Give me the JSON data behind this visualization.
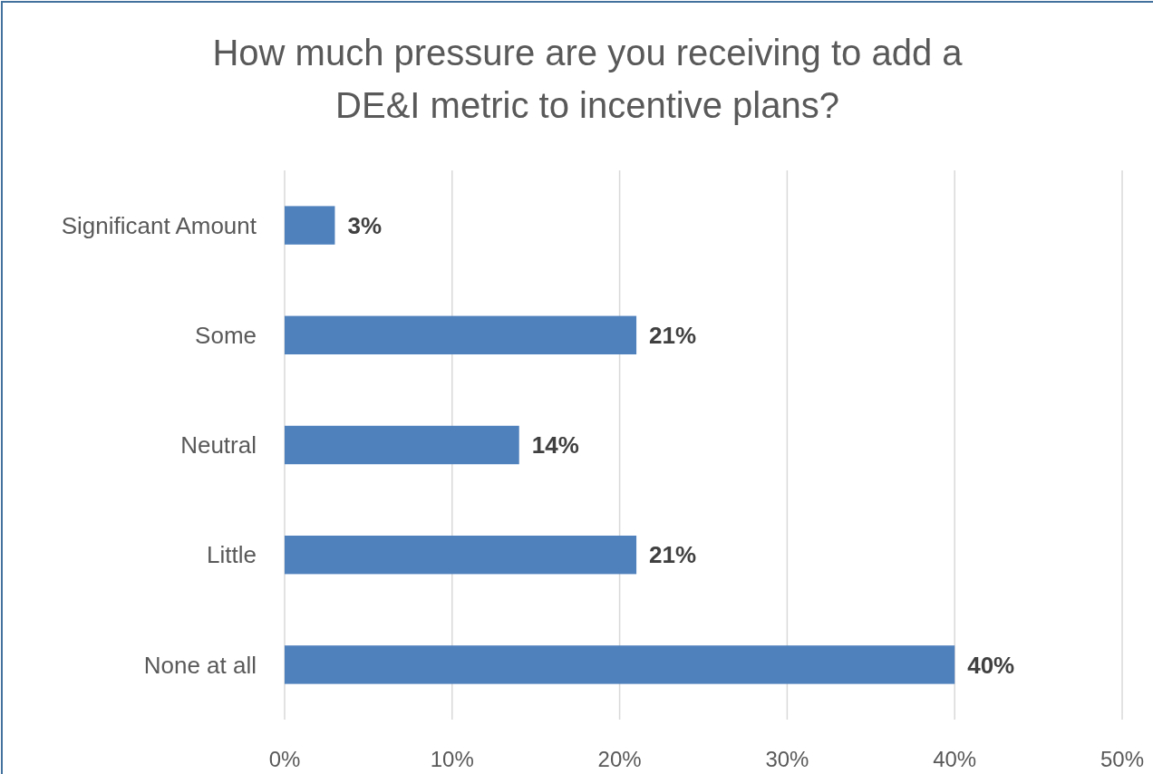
{
  "chart_data": {
    "type": "bar",
    "orientation": "horizontal",
    "title": "How much pressure are you receiving to add a\nDE&I metric to incentive plans?",
    "categories": [
      "Significant Amount",
      "Some",
      "Neutral",
      "Little",
      "None at all"
    ],
    "values": [
      3,
      21,
      14,
      21,
      40
    ],
    "value_labels": [
      "3%",
      "21%",
      "14%",
      "21%",
      "40%"
    ],
    "color": "#4f81bd",
    "xlim": [
      0,
      50
    ],
    "xticks": [
      {
        "value": 0,
        "label": "0%"
      },
      {
        "value": 10,
        "label": "10%"
      },
      {
        "value": 20,
        "label": "20%"
      },
      {
        "value": 30,
        "label": "30%"
      },
      {
        "value": 40,
        "label": "40%"
      },
      {
        "value": 50,
        "label": "50%"
      }
    ],
    "grid": "x"
  }
}
